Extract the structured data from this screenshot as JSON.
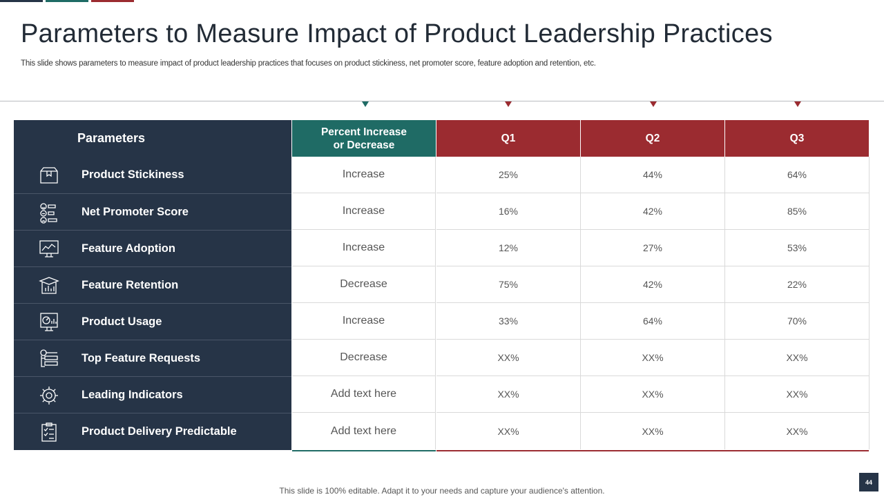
{
  "colors": {
    "navy": "#263447",
    "teal": "#1f6b65",
    "red": "#9b2b30"
  },
  "title": "Parameters to Measure Impact of Product Leadership Practices",
  "subtitle": "This slide shows parameters to measure impact of product leadership practices that focuses on product stickiness, net promoter score, feature adoption and retention, etc.",
  "table": {
    "headers": {
      "parameters": "Parameters",
      "percent_line1": "Percent Increase",
      "percent_line2": "or Decrease",
      "q1": "Q1",
      "q2": "Q2",
      "q3": "Q3"
    },
    "rows": [
      {
        "icon": "box-icon",
        "parameter": "Product Stickiness",
        "change": "Increase",
        "q1": "25%",
        "q2": "44%",
        "q3": "64%"
      },
      {
        "icon": "rating-faces-icon",
        "parameter": "Net Promoter Score",
        "change": "Increase",
        "q1": "16%",
        "q2": "42%",
        "q3": "85%"
      },
      {
        "icon": "monitor-chart-icon",
        "parameter": "Feature Adoption",
        "change": "Increase",
        "q1": "12%",
        "q2": "27%",
        "q3": "53%"
      },
      {
        "icon": "open-box-chart-icon",
        "parameter": "Feature Retention",
        "change": "Decrease",
        "q1": "75%",
        "q2": "42%",
        "q3": "22%"
      },
      {
        "icon": "dashboard-monitor-icon",
        "parameter": "Product Usage",
        "change": "Increase",
        "q1": "33%",
        "q2": "64%",
        "q3": "70%"
      },
      {
        "icon": "feature-list-icon",
        "parameter": "Top Feature Requests",
        "change": "Decrease",
        "q1": "XX%",
        "q2": "XX%",
        "q3": "XX%"
      },
      {
        "icon": "gear-icon",
        "parameter": "Leading Indicators",
        "change": "Add text here",
        "q1": "XX%",
        "q2": "XX%",
        "q3": "XX%"
      },
      {
        "icon": "clipboard-checklist-icon",
        "parameter": "Product Delivery Predictable",
        "change": "Add text here",
        "q1": "XX%",
        "q2": "XX%",
        "q3": "XX%"
      }
    ]
  },
  "footer": "This slide is 100% editable. Adapt it to your needs and capture your audience's attention.",
  "page_number": "44"
}
